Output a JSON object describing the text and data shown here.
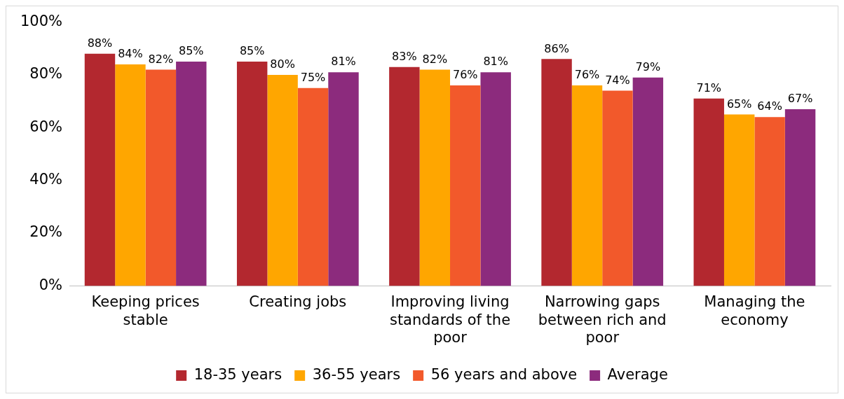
{
  "chart_data": {
    "type": "bar",
    "categories": [
      "Keeping prices stable",
      "Creating jobs",
      "Improving living standards of the poor",
      "Narrowing gaps between rich and poor",
      "Managing the economy"
    ],
    "series": [
      {
        "name": "18-35 years",
        "color": "#b3282f",
        "values": [
          88,
          85,
          83,
          86,
          71
        ],
        "value_labels": [
          "88%",
          "85%",
          "83%",
          "86%",
          "71%"
        ]
      },
      {
        "name": "36-55 years",
        "color": "#ffa600",
        "values": [
          84,
          80,
          82,
          76,
          65
        ],
        "value_labels": [
          "84%",
          "80%",
          "82%",
          "76%",
          "65%"
        ]
      },
      {
        "name": "56 years and above",
        "color": "#f2592b",
        "values": [
          82,
          75,
          76,
          74,
          64
        ],
        "value_labels": [
          "82%",
          "75%",
          "76%",
          "74%",
          "64%"
        ]
      },
      {
        "name": "Average",
        "color": "#8c2b7d",
        "values": [
          85,
          81,
          81,
          79,
          67
        ],
        "value_labels": [
          "85%",
          "81%",
          "81%",
          "79%",
          "67%"
        ]
      }
    ],
    "ylim": [
      0,
      100
    ],
    "yticks": [
      {
        "value": 0,
        "label": "0%"
      },
      {
        "value": 20,
        "label": "20%"
      },
      {
        "value": 40,
        "label": "40%"
      },
      {
        "value": 60,
        "label": "60%"
      },
      {
        "value": 80,
        "label": "80%"
      },
      {
        "value": 100,
        "label": "100%"
      }
    ],
    "grid": false,
    "legend": "bottom"
  }
}
